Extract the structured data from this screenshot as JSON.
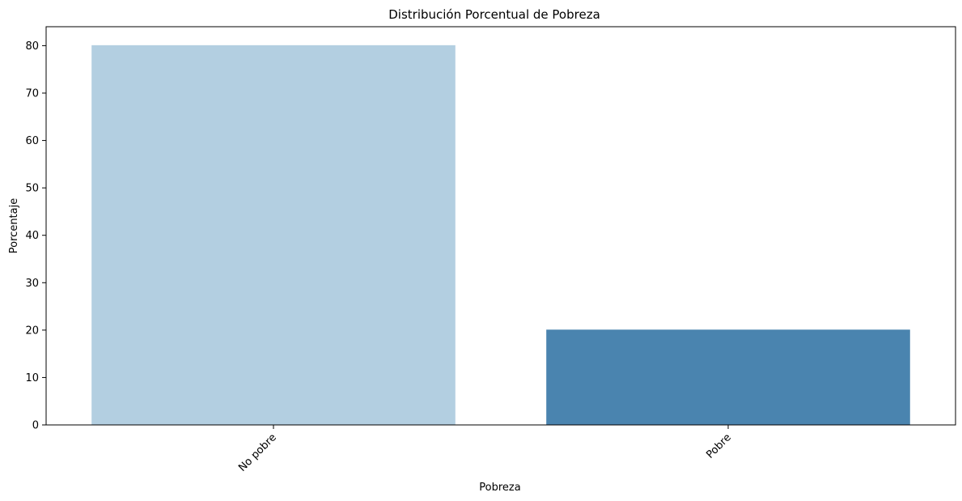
{
  "chart_data": {
    "type": "bar",
    "title": "Distribución Porcentual de Pobreza",
    "xlabel": "Pobreza",
    "ylabel": "Porcentaje",
    "categories": [
      "No pobre",
      "Pobre"
    ],
    "values": [
      80.1,
      20.1
    ],
    "colors": [
      "#b3cfe1",
      "#4a84af"
    ],
    "ylim": [
      0,
      84
    ],
    "yticks": [
      0,
      10,
      20,
      30,
      40,
      50,
      60,
      70,
      80
    ],
    "xtick_rotation": "45 degrees",
    "grid": false,
    "legend": "none"
  }
}
